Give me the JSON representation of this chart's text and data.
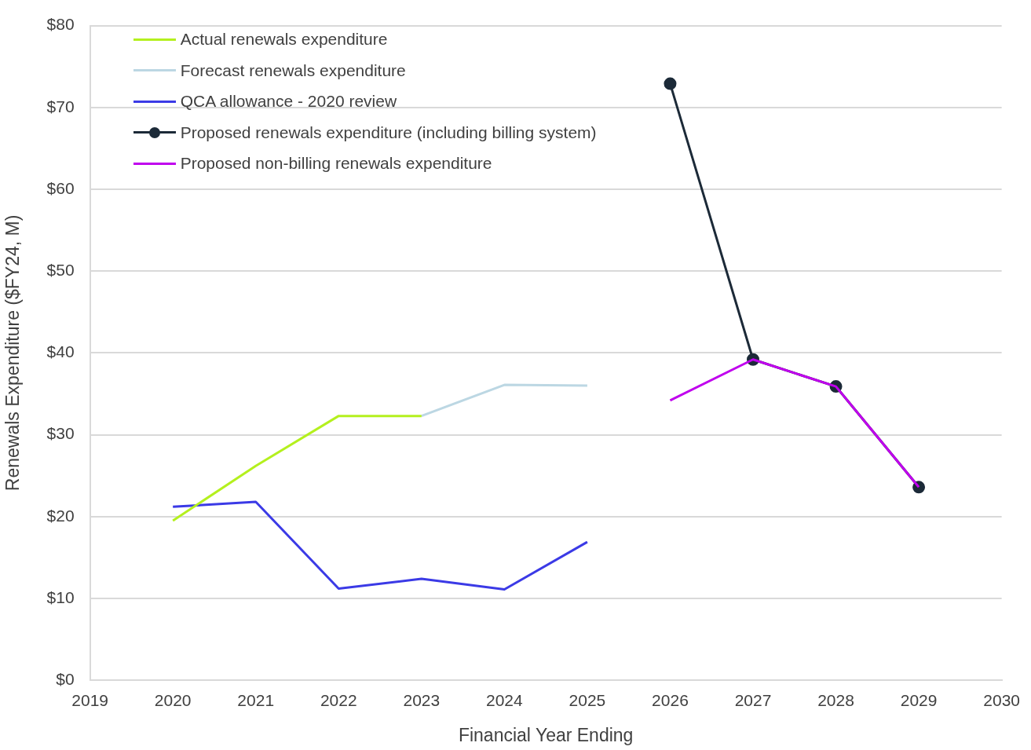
{
  "chart_data": {
    "type": "line",
    "xlabel": "Financial Year Ending",
    "ylabel": "Renewals Expenditure ($FY24, M)",
    "xlim": [
      2019,
      2030
    ],
    "xticks": [
      2019,
      2020,
      2021,
      2022,
      2023,
      2024,
      2025,
      2026,
      2027,
      2028,
      2029,
      2030
    ],
    "ylim": [
      0,
      80
    ],
    "yticks": [
      {
        "value": 0,
        "label": "$0"
      },
      {
        "value": 10,
        "label": "$10"
      },
      {
        "value": 20,
        "label": "$20"
      },
      {
        "value": 30,
        "label": "$30"
      },
      {
        "value": 40,
        "label": "$40"
      },
      {
        "value": 50,
        "label": "$50"
      },
      {
        "value": 60,
        "label": "$60"
      },
      {
        "value": 70,
        "label": "$70"
      },
      {
        "value": 80,
        "label": "$80"
      }
    ],
    "grid": "y",
    "legend": "top left",
    "series": [
      {
        "name": "Actual renewals expenditure",
        "color": "#b4f01e",
        "x": [
          2020,
          2021,
          2022,
          2023
        ],
        "values": [
          19.5,
          26.2,
          32.3,
          32.3
        ],
        "marker": "none"
      },
      {
        "name": "Forecast renewals expenditure",
        "color": "#bcd7e3",
        "x": [
          2023,
          2024,
          2025
        ],
        "values": [
          32.3,
          36.1,
          36.0
        ],
        "marker": "none"
      },
      {
        "name": "QCA allowance - 2020 review",
        "color": "#3b3ae6",
        "x": [
          2020,
          2021,
          2022,
          2023,
          2024,
          2025
        ],
        "values": [
          21.2,
          21.8,
          11.2,
          12.4,
          11.1,
          16.9
        ],
        "marker": "none"
      },
      {
        "name": "Proposed renewals expenditure (including billing system)",
        "color": "#1c2a38",
        "x": [
          2026,
          2027,
          2028,
          2029
        ],
        "values": [
          72.9,
          39.2,
          35.9,
          23.6
        ],
        "marker": "circle"
      },
      {
        "name": "Proposed non-billing renewals expenditure",
        "color": "#c000ee",
        "x": [
          2026,
          2027,
          2028,
          2029
        ],
        "values": [
          34.2,
          39.2,
          35.9,
          23.6
        ],
        "marker": "none"
      }
    ]
  }
}
